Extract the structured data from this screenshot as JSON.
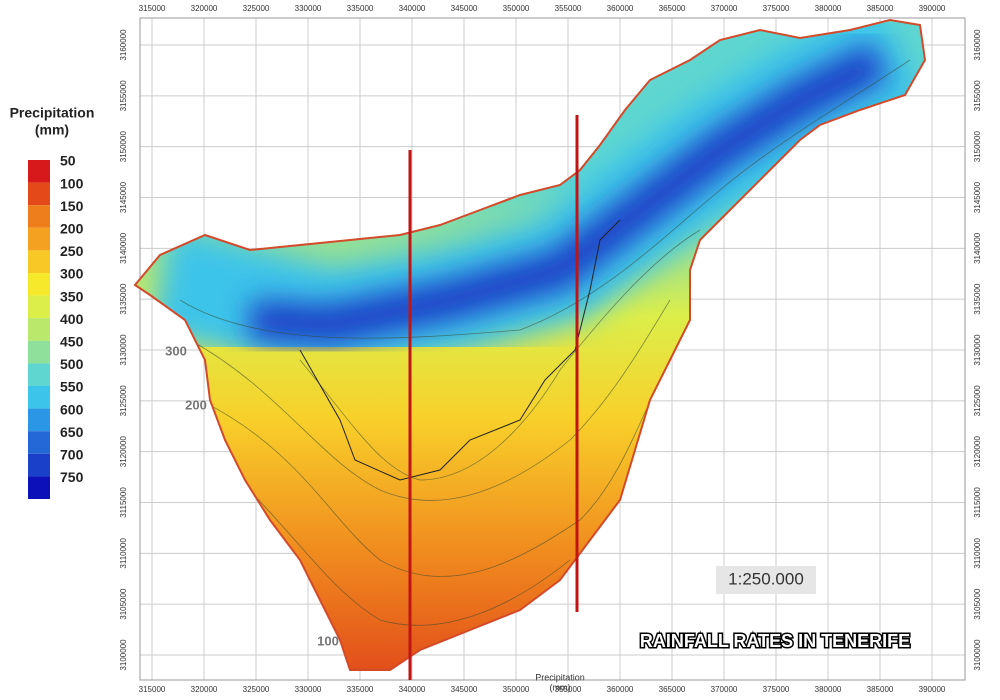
{
  "legend": {
    "title": [
      "Precipitation",
      "(mm)"
    ],
    "items": [
      {
        "value": 50,
        "color": "#d7191c"
      },
      {
        "value": 100,
        "color": "#e4491a"
      },
      {
        "value": 150,
        "color": "#ee7d1c"
      },
      {
        "value": 200,
        "color": "#f4a020"
      },
      {
        "value": 250,
        "color": "#f8c827"
      },
      {
        "value": 300,
        "color": "#f6e92c"
      },
      {
        "value": 350,
        "color": "#dcee4a"
      },
      {
        "value": 400,
        "color": "#b9e86a"
      },
      {
        "value": 450,
        "color": "#8fe09a"
      },
      {
        "value": 500,
        "color": "#5fd6cf"
      },
      {
        "value": 550,
        "color": "#3cc4ea"
      },
      {
        "value": 600,
        "color": "#2c96e6"
      },
      {
        "value": 650,
        "color": "#2468d8"
      },
      {
        "value": 700,
        "color": "#1a3fc8"
      },
      {
        "value": 750,
        "color": "#0b10b8"
      }
    ]
  },
  "x_ticks": [
    315000,
    320000,
    325000,
    330000,
    335000,
    340000,
    345000,
    350000,
    355000,
    360000,
    365000,
    370000,
    375000,
    380000,
    385000,
    390000
  ],
  "y_ticks": [
    3100000,
    3105000,
    3110000,
    3115000,
    3120000,
    3125000,
    3130000,
    3135000,
    3140000,
    3145000,
    3150000,
    3155000,
    3160000
  ],
  "contour_labels": [
    300,
    200,
    100
  ],
  "scale": "1:250.000",
  "title": "RAINFALL RATES IN TENERIFE",
  "footer_label": [
    "Precipitation",
    "(mm)"
  ]
}
